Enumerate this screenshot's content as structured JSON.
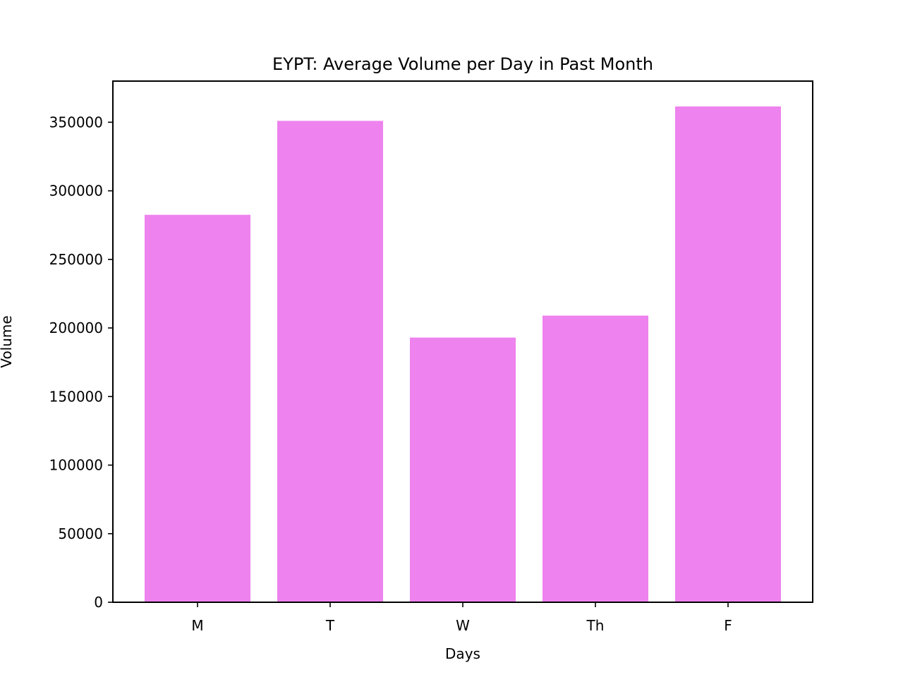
{
  "chart_data": {
    "type": "bar",
    "title": "EYPT: Average Volume per Day in Past Month",
    "xlabel": "Days",
    "ylabel": "Volume",
    "categories": [
      "M",
      "T",
      "W",
      "Th",
      "F"
    ],
    "values": [
      282500,
      351000,
      193000,
      209000,
      361500
    ],
    "ylim": [
      0,
      380000
    ],
    "yticks": [
      0,
      50000,
      100000,
      150000,
      200000,
      250000,
      300000,
      350000
    ],
    "ytick_labels": [
      "0",
      "50000",
      "100000",
      "150000",
      "200000",
      "250000",
      "300000",
      "350000"
    ],
    "bar_color": "#ee82ee",
    "grid": false,
    "legend": "none"
  }
}
